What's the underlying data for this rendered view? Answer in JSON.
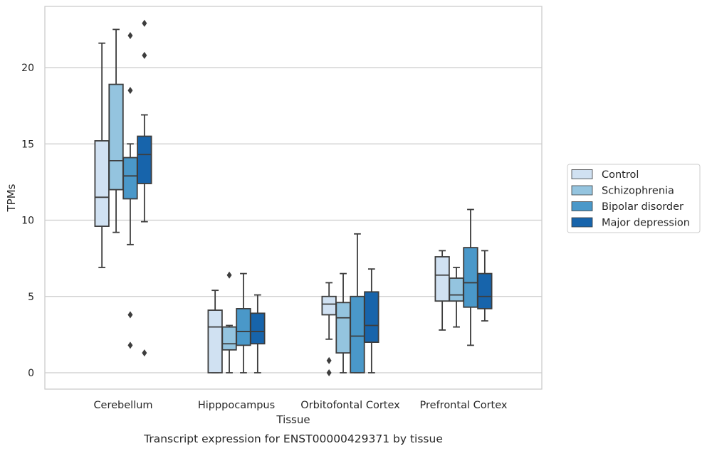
{
  "chart_data": {
    "type": "box",
    "caption": "Transcript expression for ENST00000429371 by tissue",
    "xlabel": "Tissue",
    "ylabel": "TPMs",
    "ylim": [
      -1.1,
      24
    ],
    "yticks": [
      0,
      5,
      10,
      15,
      20
    ],
    "grid": "horizontal",
    "legend_position": "right",
    "categories": [
      "Cerebellum",
      "Hipppocampus",
      "Orbitofontal Cortex",
      "Prefrontal Cortex"
    ],
    "series": [
      {
        "name": "Control",
        "color": "#d0e1f2",
        "boxes": [
          {
            "whislo": 6.9,
            "q1": 9.6,
            "med": 11.5,
            "q3": 15.2,
            "whishi": 21.6,
            "fliers": []
          },
          {
            "whislo": 0.0,
            "q1": 0.0,
            "med": 3.0,
            "q3": 4.1,
            "whishi": 5.4,
            "fliers": []
          },
          {
            "whislo": 2.2,
            "q1": 3.8,
            "med": 4.5,
            "q3": 5.0,
            "whishi": 5.9,
            "fliers": [
              0.8,
              0.0
            ]
          },
          {
            "whislo": 2.8,
            "q1": 4.7,
            "med": 6.4,
            "q3": 7.6,
            "whishi": 8.0,
            "fliers": []
          }
        ]
      },
      {
        "name": "Schizophrenia",
        "color": "#94c4df",
        "boxes": [
          {
            "whislo": 9.2,
            "q1": 12.0,
            "med": 13.9,
            "q3": 18.9,
            "whishi": 22.5,
            "fliers": []
          },
          {
            "whislo": 0.0,
            "q1": 1.5,
            "med": 1.9,
            "q3": 3.0,
            "whishi": 3.1,
            "fliers": [
              6.4
            ]
          },
          {
            "whislo": 0.0,
            "q1": 1.3,
            "med": 3.6,
            "q3": 4.6,
            "whishi": 6.5,
            "fliers": []
          },
          {
            "whislo": 3.0,
            "q1": 4.7,
            "med": 5.1,
            "q3": 6.2,
            "whishi": 6.9,
            "fliers": []
          }
        ]
      },
      {
        "name": "Bipolar disorder",
        "color": "#4a98c9",
        "boxes": [
          {
            "whislo": 8.4,
            "q1": 11.4,
            "med": 12.9,
            "q3": 14.1,
            "whishi": 15.0,
            "fliers": [
              22.1,
              18.5,
              3.8,
              1.8
            ]
          },
          {
            "whislo": 0.0,
            "q1": 1.8,
            "med": 2.7,
            "q3": 4.2,
            "whishi": 6.5,
            "fliers": []
          },
          {
            "whislo": 0.0,
            "q1": 0.0,
            "med": 2.4,
            "q3": 5.0,
            "whishi": 9.1,
            "fliers": []
          },
          {
            "whislo": 1.8,
            "q1": 4.3,
            "med": 5.9,
            "q3": 8.2,
            "whishi": 10.7,
            "fliers": []
          }
        ]
      },
      {
        "name": "Major depression",
        "color": "#1764ab",
        "boxes": [
          {
            "whislo": 9.9,
            "q1": 12.4,
            "med": 14.3,
            "q3": 15.5,
            "whishi": 16.9,
            "fliers": [
              22.9,
              20.8,
              1.3
            ]
          },
          {
            "whislo": 0.0,
            "q1": 1.9,
            "med": 2.7,
            "q3": 3.9,
            "whishi": 5.1,
            "fliers": []
          },
          {
            "whislo": 0.0,
            "q1": 2.0,
            "med": 3.1,
            "q3": 5.3,
            "whishi": 6.8,
            "fliers": []
          },
          {
            "whislo": 3.4,
            "q1": 4.2,
            "med": 5.0,
            "q3": 6.5,
            "whishi": 8.0,
            "fliers": []
          }
        ]
      }
    ]
  }
}
